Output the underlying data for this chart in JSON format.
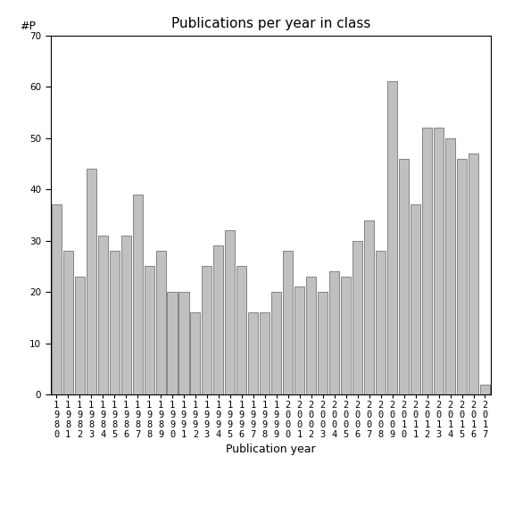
{
  "title": "Publications per year in class",
  "xlabel": "Publication year",
  "ylabel": "#P",
  "years": [
    "1980",
    "1981",
    "1982",
    "1983",
    "1984",
    "1985",
    "1986",
    "1987",
    "1988",
    "1989",
    "1990",
    "1991",
    "1992",
    "1993",
    "1994",
    "1995",
    "1996",
    "1997",
    "1998",
    "1999",
    "2000",
    "2001",
    "2002",
    "2003",
    "2004",
    "2005",
    "2006",
    "2007",
    "2008",
    "2009",
    "2010",
    "2011",
    "2012",
    "2013",
    "2014",
    "2015",
    "2016",
    "2017"
  ],
  "values": [
    37,
    28,
    23,
    44,
    31,
    28,
    31,
    39,
    25,
    28,
    20,
    20,
    16,
    25,
    29,
    32,
    25,
    16,
    16,
    20,
    28,
    21,
    23,
    20,
    24,
    23,
    30,
    34,
    28,
    61,
    46,
    37,
    52,
    52,
    50,
    46,
    47,
    2
  ],
  "bar_color": "#c0c0c0",
  "bar_edgecolor": "#606060",
  "ylim": [
    0,
    70
  ],
  "yticks": [
    0,
    10,
    20,
    30,
    40,
    50,
    60,
    70
  ],
  "bg_color": "#ffffff",
  "title_fontsize": 11,
  "axis_label_fontsize": 9,
  "tick_fontsize": 7.5
}
